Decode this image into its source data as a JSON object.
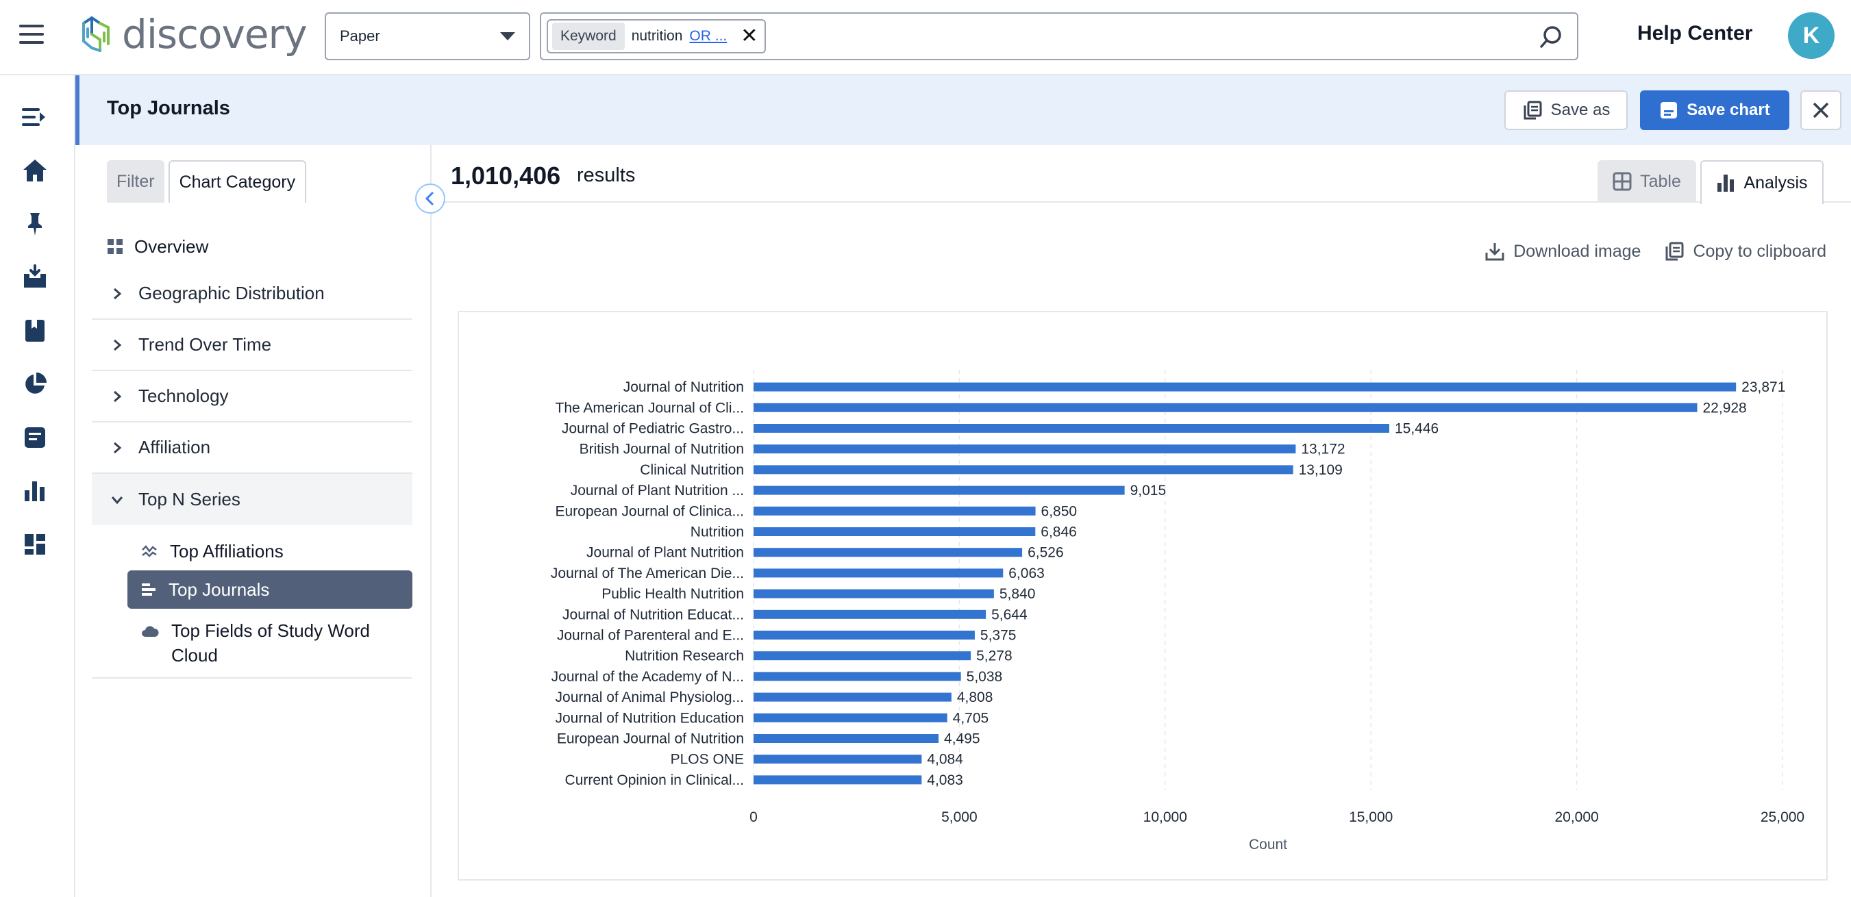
{
  "app": {
    "name": "discovery",
    "help_label": "Help Center",
    "avatar_initial": "K"
  },
  "search": {
    "type_selected": "Paper",
    "chip_tag": "Keyword",
    "chip_value": "nutrition",
    "chip_more": "OR ..."
  },
  "title_bar": {
    "title": "Top Journals",
    "save_as_label": "Save as",
    "save_chart_label": "Save chart"
  },
  "panel": {
    "tabs": [
      {
        "label": "Filter"
      },
      {
        "label": "Chart Category"
      }
    ],
    "overview_label": "Overview",
    "categories": [
      {
        "label": "Geographic Distribution"
      },
      {
        "label": "Trend Over Time"
      },
      {
        "label": "Technology"
      },
      {
        "label": "Affiliation"
      },
      {
        "label": "Top N Series"
      }
    ],
    "sub_items": [
      {
        "label": "Top Affiliations"
      },
      {
        "label": "Top Journals"
      },
      {
        "label": "Top Fields of Study Word Cloud"
      }
    ]
  },
  "results": {
    "count": "1,010,406",
    "label": "results"
  },
  "views": {
    "table_label": "Table",
    "analysis_label": "Analysis"
  },
  "actions": {
    "download_label": "Download image",
    "copy_label": "Copy to clipboard"
  },
  "colors": {
    "bar": "#3274d0",
    "accent": "#2f6fd0",
    "avatar": "#3fa9c8"
  },
  "chart_data": {
    "type": "bar",
    "orientation": "horizontal",
    "categories": [
      "Journal of Nutrition",
      "The American Journal of Cli...",
      "Journal of Pediatric Gastro...",
      "British Journal of Nutrition",
      "Clinical Nutrition",
      "Journal of Plant Nutrition ...",
      "European Journal of Clinica...",
      "Nutrition",
      "Journal of Plant Nutrition",
      "Journal of The American Die...",
      "Public Health Nutrition",
      "Journal of Nutrition Educat...",
      "Journal of Parenteral and E...",
      "Nutrition Research",
      "Journal of the Academy of N...",
      "Journal of Animal Physiolog...",
      "Journal of Nutrition Education",
      "European Journal of Nutrition",
      "PLOS ONE",
      "Current Opinion in Clinical..."
    ],
    "values": [
      23871,
      22928,
      15446,
      13172,
      13109,
      9015,
      6850,
      6846,
      6526,
      6063,
      5840,
      5644,
      5375,
      5278,
      5038,
      4808,
      4705,
      4495,
      4084,
      4083
    ],
    "value_labels": [
      "23,871",
      "22,928",
      "15,446",
      "13,172",
      "13,109",
      "9,015",
      "6,850",
      "6,846",
      "6,526",
      "6,063",
      "5,840",
      "5,644",
      "5,375",
      "5,278",
      "5,038",
      "4,808",
      "4,705",
      "4,495",
      "4,084",
      "4,083"
    ],
    "x_ticks": [
      0,
      5000,
      10000,
      15000,
      20000,
      25000
    ],
    "x_tick_labels": [
      "0",
      "5,000",
      "10,000",
      "15,000",
      "20,000",
      "25,000"
    ],
    "xlim": [
      0,
      25000
    ],
    "xlabel": "Count",
    "ylabel": "",
    "title": "",
    "grid": true
  }
}
